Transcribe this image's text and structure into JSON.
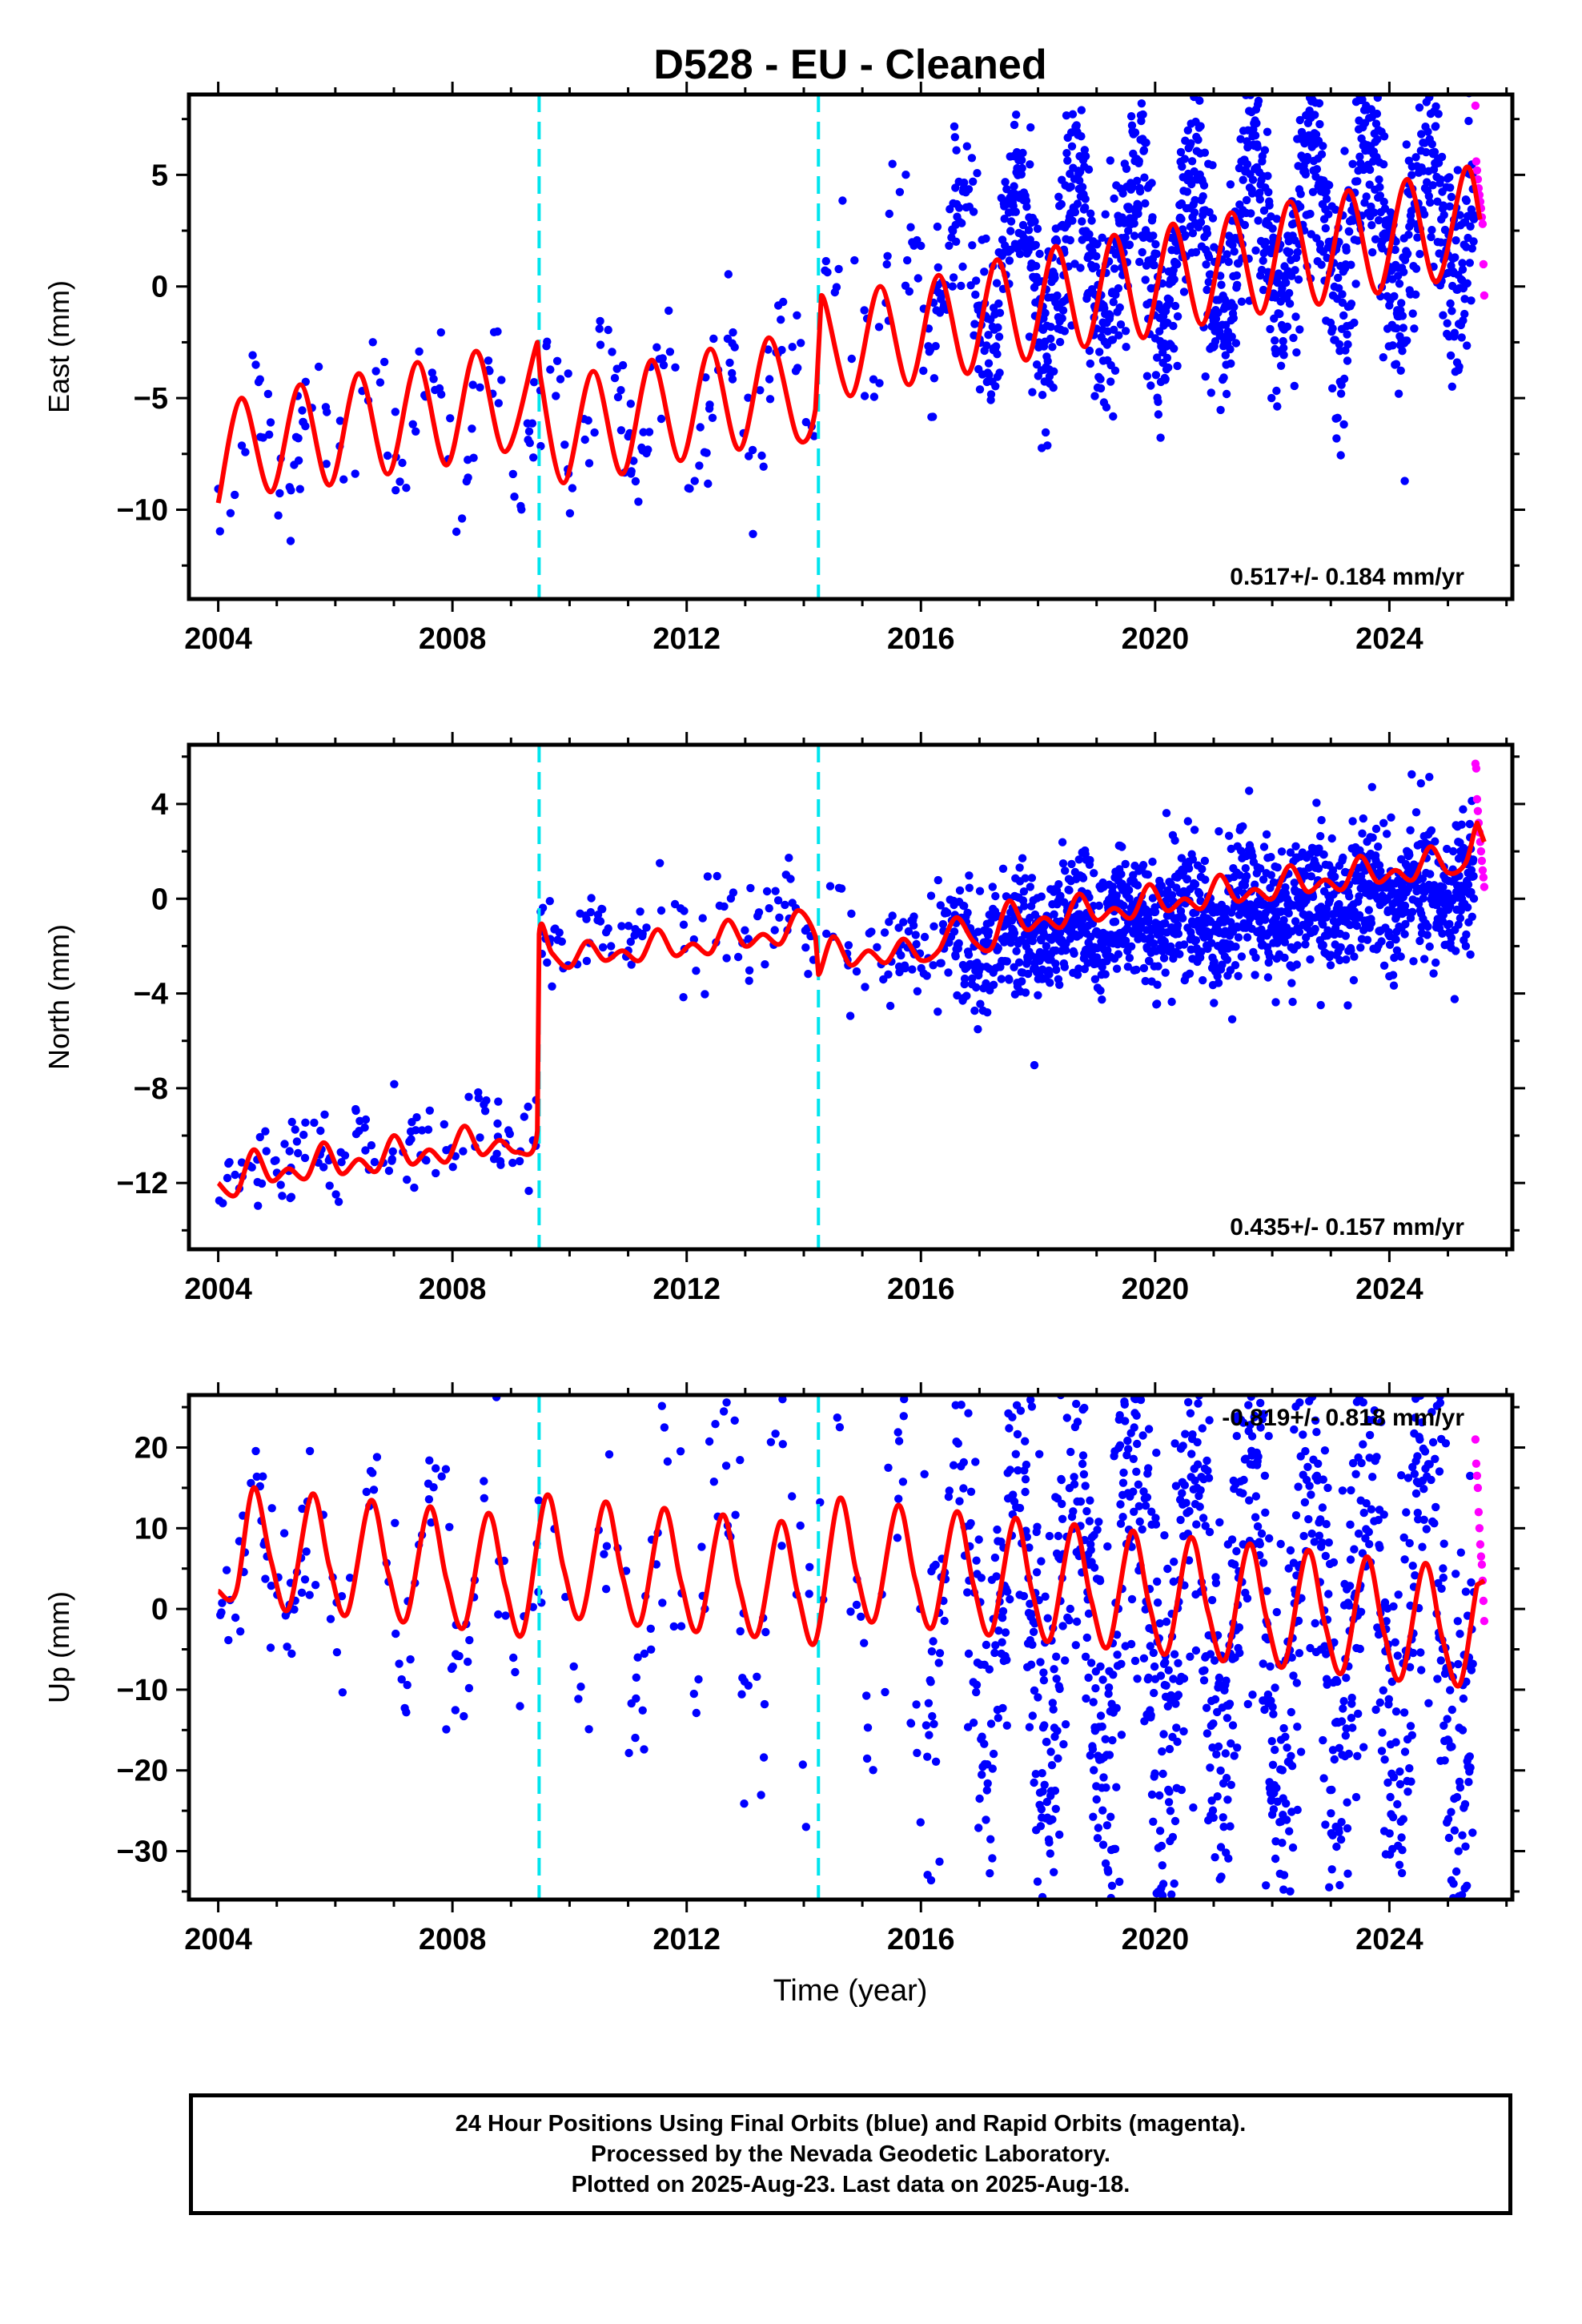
{
  "figure": {
    "title": "D528  - EU - Cleaned",
    "xlabel": "Time (year)",
    "footer_lines": [
      "24 Hour Positions Using Final Orbits (blue) and Rapid Orbits (magenta).",
      "Processed by the Nevada Geodetic Laboratory.",
      "Plotted on 2025-Aug-23. Last data on 2025-Aug-18."
    ]
  },
  "colors": {
    "final_orbits": "#0000ff",
    "rapid_orbits": "#ff00ff",
    "model_fit": "#ff0000",
    "steps": "#00e5ee"
  },
  "chart_data": [
    {
      "type": "scatter",
      "name": "east",
      "ylabel": "East (mm)",
      "rate_label": "0.517+/- 0.184 mm/yr",
      "xlim": [
        2003.5,
        2026.1
      ],
      "ylim": [
        -14.0,
        8.6
      ],
      "xticks": [
        2004,
        2008,
        2012,
        2016,
        2020,
        2024
      ],
      "yticks": [
        -10,
        -5,
        0,
        5
      ],
      "steps_x": [
        2009.48,
        2014.25
      ],
      "final_range": [
        2004.0,
        2025.45
      ],
      "rapid_range": [
        2025.47,
        2025.62
      ],
      "model_curve": [
        [
          2004.0,
          -9.7
        ],
        [
          2004.4,
          -5.0
        ],
        [
          2004.9,
          -9.2
        ],
        [
          2005.4,
          -4.4
        ],
        [
          2005.9,
          -8.9
        ],
        [
          2006.4,
          -3.9
        ],
        [
          2006.9,
          -8.4
        ],
        [
          2007.4,
          -3.4
        ],
        [
          2007.9,
          -8.0
        ],
        [
          2008.4,
          -2.9
        ],
        [
          2008.9,
          -7.4
        ],
        [
          2009.45,
          -2.5
        ],
        [
          2009.5,
          -4.0
        ],
        [
          2009.9,
          -8.8
        ],
        [
          2010.4,
          -3.8
        ],
        [
          2010.9,
          -8.4
        ],
        [
          2011.4,
          -3.3
        ],
        [
          2011.9,
          -7.8
        ],
        [
          2012.4,
          -2.8
        ],
        [
          2012.9,
          -7.3
        ],
        [
          2013.4,
          -2.3
        ],
        [
          2013.9,
          -6.8
        ],
        [
          2014.2,
          -5.5
        ],
        [
          2014.3,
          -0.4
        ],
        [
          2014.8,
          -4.9
        ],
        [
          2015.3,
          0.0
        ],
        [
          2015.8,
          -4.4
        ],
        [
          2016.3,
          0.5
        ],
        [
          2016.8,
          -3.9
        ],
        [
          2017.3,
          1.2
        ],
        [
          2017.8,
          -3.3
        ],
        [
          2018.3,
          1.8
        ],
        [
          2018.8,
          -2.7
        ],
        [
          2019.3,
          2.3
        ],
        [
          2019.8,
          -2.3
        ],
        [
          2020.3,
          2.8
        ],
        [
          2020.8,
          -1.7
        ],
        [
          2021.3,
          3.3
        ],
        [
          2021.8,
          -1.2
        ],
        [
          2022.3,
          3.8
        ],
        [
          2022.8,
          -0.8
        ],
        [
          2023.3,
          4.3
        ],
        [
          2023.8,
          -0.3
        ],
        [
          2024.3,
          4.8
        ],
        [
          2024.8,
          0.2
        ],
        [
          2025.3,
          5.3
        ],
        [
          2025.55,
          3.0
        ]
      ],
      "scatter_model": {
        "t0": 2004.0,
        "y0": -7.3,
        "trend": 0.28,
        "amp": 2.3,
        "amp_growth": 0.03,
        "phase": 0.4,
        "noise": 1.1,
        "noise_growth": 0.06,
        "offsets": [
          [
            2009.48,
            0.0
          ],
          [
            2014.25,
            4.5
          ]
        ],
        "rapid_values": [
          8.1,
          5.6,
          5.2,
          4.8,
          4.4,
          4.1,
          3.8,
          3.5,
          3.1,
          2.8,
          1.0,
          -0.4
        ]
      }
    },
    {
      "type": "scatter",
      "name": "north",
      "ylabel": "North (mm)",
      "rate_label": "0.435+/- 0.157 mm/yr",
      "xlim": [
        2003.5,
        2026.1
      ],
      "ylim": [
        -14.8,
        6.5
      ],
      "xticks": [
        2004,
        2008,
        2012,
        2016,
        2020,
        2024
      ],
      "yticks": [
        -12,
        -8,
        -4,
        0,
        4
      ],
      "steps_x": [
        2009.48,
        2014.25
      ],
      "final_range": [
        2004.0,
        2025.45
      ],
      "rapid_range": [
        2025.47,
        2025.62
      ],
      "model_curve": [
        [
          2004.0,
          -12.0
        ],
        [
          2004.3,
          -12.5
        ],
        [
          2004.6,
          -10.6
        ],
        [
          2004.9,
          -11.9
        ],
        [
          2005.2,
          -11.4
        ],
        [
          2005.5,
          -11.8
        ],
        [
          2005.8,
          -10.3
        ],
        [
          2006.1,
          -11.6
        ],
        [
          2006.4,
          -11.0
        ],
        [
          2006.7,
          -11.5
        ],
        [
          2007.0,
          -10.0
        ],
        [
          2007.3,
          -11.2
        ],
        [
          2007.6,
          -10.6
        ],
        [
          2007.9,
          -11.1
        ],
        [
          2008.2,
          -9.6
        ],
        [
          2008.5,
          -10.8
        ],
        [
          2008.8,
          -10.2
        ],
        [
          2009.1,
          -10.7
        ],
        [
          2009.45,
          -9.8
        ],
        [
          2009.48,
          -1.5
        ],
        [
          2009.7,
          -2.3
        ],
        [
          2010.0,
          -2.9
        ],
        [
          2010.3,
          -1.8
        ],
        [
          2010.6,
          -2.6
        ],
        [
          2010.9,
          -2.2
        ],
        [
          2011.2,
          -2.6
        ],
        [
          2011.5,
          -1.3
        ],
        [
          2011.8,
          -2.4
        ],
        [
          2012.1,
          -1.9
        ],
        [
          2012.4,
          -2.3
        ],
        [
          2012.7,
          -0.9
        ],
        [
          2013.0,
          -2.0
        ],
        [
          2013.3,
          -1.5
        ],
        [
          2013.6,
          -1.9
        ],
        [
          2013.9,
          -0.5
        ],
        [
          2014.2,
          -1.6
        ],
        [
          2014.25,
          -3.2
        ],
        [
          2014.5,
          -1.6
        ],
        [
          2014.8,
          -2.8
        ],
        [
          2015.1,
          -2.2
        ],
        [
          2015.4,
          -2.7
        ],
        [
          2015.7,
          -1.7
        ],
        [
          2016.0,
          -2.6
        ],
        [
          2016.3,
          -2.2
        ],
        [
          2016.6,
          -0.8
        ],
        [
          2016.9,
          -1.8
        ],
        [
          2017.2,
          -2.1
        ],
        [
          2017.5,
          -0.1
        ],
        [
          2017.8,
          -1.3
        ],
        [
          2018.1,
          -0.8
        ],
        [
          2018.4,
          -1.2
        ],
        [
          2018.7,
          0.2
        ],
        [
          2019.0,
          -0.9
        ],
        [
          2019.3,
          -0.4
        ],
        [
          2019.6,
          -0.8
        ],
        [
          2019.9,
          0.6
        ],
        [
          2020.2,
          -0.5
        ],
        [
          2020.5,
          0.0
        ],
        [
          2020.8,
          -0.4
        ],
        [
          2021.1,
          1.0
        ],
        [
          2021.4,
          -0.1
        ],
        [
          2021.7,
          0.4
        ],
        [
          2022.0,
          0.0
        ],
        [
          2022.3,
          1.4
        ],
        [
          2022.6,
          0.3
        ],
        [
          2022.9,
          0.8
        ],
        [
          2023.2,
          0.4
        ],
        [
          2023.5,
          1.8
        ],
        [
          2023.8,
          0.7
        ],
        [
          2024.1,
          1.2
        ],
        [
          2024.4,
          0.8
        ],
        [
          2024.7,
          2.2
        ],
        [
          2025.0,
          1.1
        ],
        [
          2025.3,
          1.5
        ],
        [
          2025.5,
          3.2
        ],
        [
          2025.62,
          2.4
        ]
      ],
      "scatter_model": {
        "t0": 2004.0,
        "y0": -11.2,
        "trend": 0.25,
        "amp": 0.6,
        "amp_growth": 0.0,
        "phase": 0.3,
        "noise": 0.9,
        "noise_growth": 0.035,
        "offsets": [
          [
            2009.48,
            7.9
          ],
          [
            2014.25,
            -1.6
          ]
        ],
        "rapid_values": [
          5.7,
          5.5,
          4.2,
          3.7,
          3.2,
          2.8,
          2.4,
          2.0,
          1.6,
          1.2,
          0.9,
          0.5
        ]
      }
    },
    {
      "type": "scatter",
      "name": "up",
      "ylabel": "Up (mm)",
      "rate_label": "-0.819+/- 0.818 mm/yr",
      "xlim": [
        2003.5,
        2026.1
      ],
      "ylim": [
        -36.0,
        26.5
      ],
      "xticks": [
        2004,
        2008,
        2012,
        2016,
        2020,
        2024
      ],
      "yticks": [
        -30,
        -20,
        -10,
        0,
        10,
        20
      ],
      "steps_x": [
        2009.48,
        2014.25
      ],
      "final_range": [
        2004.0,
        2025.45
      ],
      "rapid_range": [
        2025.47,
        2025.62
      ],
      "model_curve": [
        [
          2004.0,
          2.2
        ],
        [
          2004.3,
          2.0
        ],
        [
          2004.6,
          15.0
        ],
        [
          2004.9,
          6.0
        ],
        [
          2005.2,
          0.0
        ],
        [
          2005.6,
          14.2
        ],
        [
          2005.9,
          5.2
        ],
        [
          2006.2,
          -0.6
        ],
        [
          2006.6,
          13.4
        ],
        [
          2006.9,
          4.5
        ],
        [
          2007.2,
          -1.4
        ],
        [
          2007.6,
          12.6
        ],
        [
          2007.9,
          3.6
        ],
        [
          2008.2,
          -2.2
        ],
        [
          2008.6,
          11.8
        ],
        [
          2008.9,
          2.8
        ],
        [
          2009.2,
          -3.0
        ],
        [
          2009.6,
          14.0
        ],
        [
          2009.9,
          5.0
        ],
        [
          2010.2,
          -1.0
        ],
        [
          2010.6,
          13.2
        ],
        [
          2010.9,
          4.2
        ],
        [
          2011.2,
          -1.8
        ],
        [
          2011.6,
          12.4
        ],
        [
          2011.9,
          3.4
        ],
        [
          2012.2,
          -2.6
        ],
        [
          2012.6,
          11.6
        ],
        [
          2012.9,
          2.6
        ],
        [
          2013.2,
          -3.2
        ],
        [
          2013.6,
          10.8
        ],
        [
          2013.9,
          1.8
        ],
        [
          2014.2,
          -4.0
        ],
        [
          2014.6,
          13.6
        ],
        [
          2014.9,
          4.5
        ],
        [
          2015.2,
          -1.4
        ],
        [
          2015.6,
          12.8
        ],
        [
          2015.9,
          3.7
        ],
        [
          2016.2,
          -2.2
        ],
        [
          2016.6,
          12.0
        ],
        [
          2016.9,
          2.9
        ],
        [
          2017.2,
          -3.0
        ],
        [
          2017.6,
          11.2
        ],
        [
          2017.9,
          2.1
        ],
        [
          2018.2,
          -3.8
        ],
        [
          2018.6,
          10.4
        ],
        [
          2018.9,
          1.3
        ],
        [
          2019.2,
          -4.6
        ],
        [
          2019.6,
          9.6
        ],
        [
          2019.9,
          0.5
        ],
        [
          2020.2,
          -5.4
        ],
        [
          2020.6,
          8.8
        ],
        [
          2020.9,
          -0.3
        ],
        [
          2021.2,
          -6.2
        ],
        [
          2021.6,
          8.0
        ],
        [
          2021.9,
          -1.1
        ],
        [
          2022.2,
          -7.0
        ],
        [
          2022.6,
          7.2
        ],
        [
          2022.9,
          -1.9
        ],
        [
          2023.2,
          -7.8
        ],
        [
          2023.6,
          6.4
        ],
        [
          2023.9,
          -2.7
        ],
        [
          2024.2,
          -8.6
        ],
        [
          2024.6,
          5.6
        ],
        [
          2024.9,
          -3.5
        ],
        [
          2025.2,
          -9.4
        ],
        [
          2025.5,
          3.0
        ],
        [
          2025.62,
          3.5
        ]
      ],
      "scatter_model": {
        "t0": 2004.0,
        "y0": 6.0,
        "trend": -0.28,
        "amp": 7.0,
        "amp_growth": 0.15,
        "phase": 0.38,
        "noise": 4.5,
        "noise_growth": 0.14,
        "offsets": [],
        "rapid_values": [
          21.0,
          18.0,
          16.5,
          15.0,
          12.0,
          10.0,
          8.0,
          6.5,
          5.5,
          3.5,
          1.0,
          -1.5
        ]
      }
    }
  ]
}
